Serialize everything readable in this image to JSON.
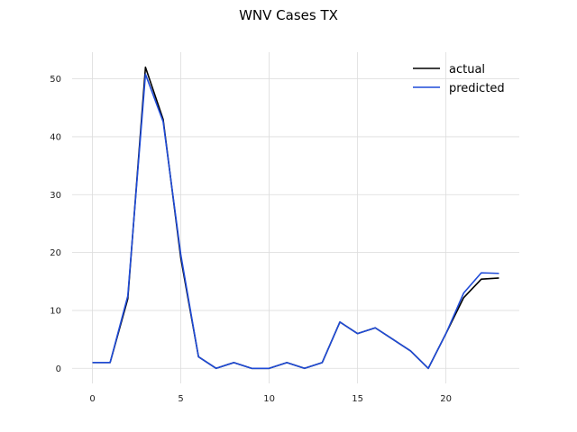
{
  "chart_data": {
    "type": "line",
    "title": "WNV Cases TX",
    "xlabel": "",
    "ylabel": "",
    "x": [
      0,
      1,
      2,
      3,
      4,
      5,
      6,
      7,
      8,
      9,
      10,
      11,
      12,
      13,
      14,
      15,
      16,
      17,
      18,
      19,
      20,
      21,
      22,
      23
    ],
    "xlim": [
      -1.15,
      24.15
    ],
    "ylim": [
      -2.6,
      54.6
    ],
    "xticks": [
      0,
      5,
      10,
      15,
      20
    ],
    "yticks": [
      0,
      10,
      20,
      30,
      40,
      50
    ],
    "grid": true,
    "legend_position": "top-right",
    "series": [
      {
        "name": "actual",
        "color": "#000000",
        "values": [
          1,
          1,
          12,
          52,
          43,
          19,
          2,
          0,
          1,
          0,
          0,
          1,
          0,
          1,
          8,
          6,
          7,
          5,
          3,
          0,
          6,
          12.2,
          15.4,
          15.6
        ]
      },
      {
        "name": "predicted",
        "color": "#1f4bd8",
        "values": [
          1,
          1,
          12.5,
          50.8,
          42.6,
          19.6,
          2,
          0,
          1,
          0,
          0,
          1,
          0,
          1,
          8,
          6,
          7,
          5,
          3,
          0,
          6,
          13,
          16.5,
          16.4
        ]
      }
    ]
  }
}
